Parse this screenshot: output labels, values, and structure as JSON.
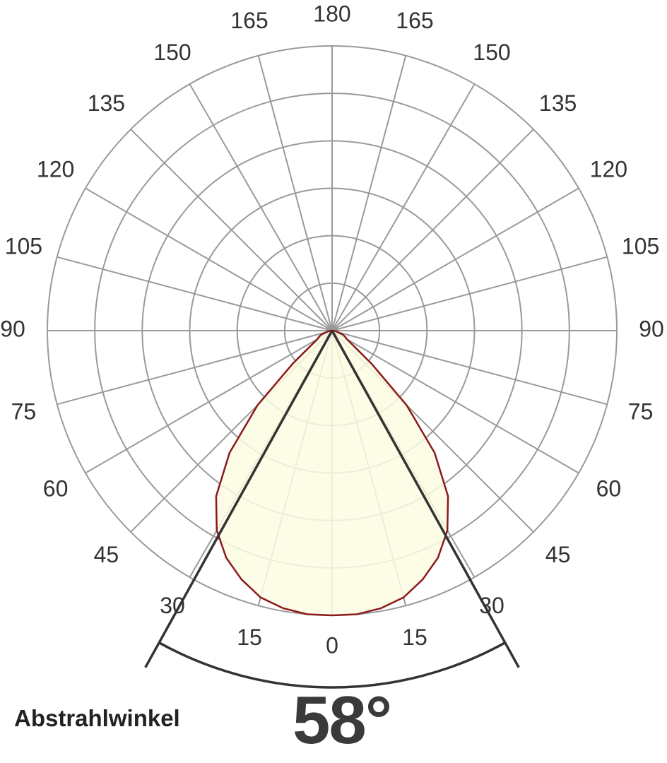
{
  "chart_data": {
    "type": "polar",
    "angle_tick_labels": [
      "0",
      "15",
      "30",
      "45",
      "60",
      "75",
      "90",
      "105",
      "120",
      "135",
      "150",
      "165",
      "180"
    ],
    "rings": 6,
    "grid": true,
    "distribution": {
      "angles_deg": [
        0,
        5,
        10,
        15,
        20,
        25,
        30,
        35,
        40,
        45,
        50,
        55,
        60,
        65,
        70,
        75,
        80,
        85,
        90
      ],
      "relative_intensity": [
        1.0,
        1.0,
        0.99,
        0.97,
        0.93,
        0.88,
        0.81,
        0.71,
        0.56,
        0.37,
        0.18,
        0.09,
        0.06,
        0.05,
        0.04,
        0.02,
        0.015,
        0.005,
        0.0
      ]
    },
    "beam_angle_deg": 58,
    "colors": {
      "grid": "#9a9a9a",
      "curve": "#8b1a1a",
      "fill": "#fdfbe3",
      "beam": "#333333",
      "text": "#333333"
    }
  },
  "footer": {
    "label": "Abstrahlwinkel",
    "beam_angle_text": "58°"
  }
}
